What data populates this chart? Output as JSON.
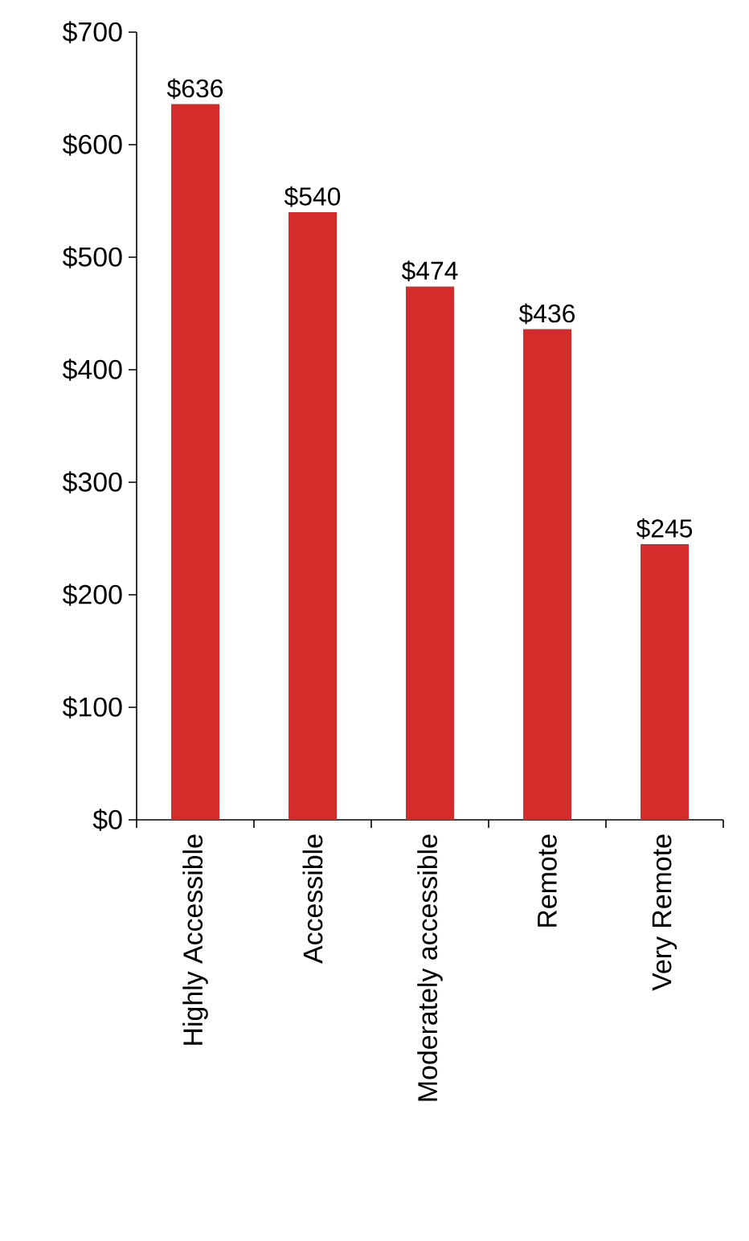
{
  "chart_data": {
    "type": "bar",
    "categories": [
      "Highly Accessible",
      "Accessible",
      "Moderately accessible",
      "Remote",
      "Very Remote"
    ],
    "values": [
      636,
      540,
      474,
      436,
      245
    ],
    "value_labels": [
      "$636",
      "$540",
      "$474",
      "$436",
      "$245"
    ],
    "color": "#d42b2b",
    "ylim": [
      0,
      700
    ],
    "yticks": [
      {
        "value": 0,
        "label": "$0"
      },
      {
        "value": 100,
        "label": "$100"
      },
      {
        "value": 200,
        "label": "$200"
      },
      {
        "value": 300,
        "label": "$300"
      },
      {
        "value": 400,
        "label": "$400"
      },
      {
        "value": 500,
        "label": "$500"
      },
      {
        "value": 600,
        "label": "$600"
      },
      {
        "value": 700,
        "label": "$700"
      }
    ],
    "grid": false
  }
}
